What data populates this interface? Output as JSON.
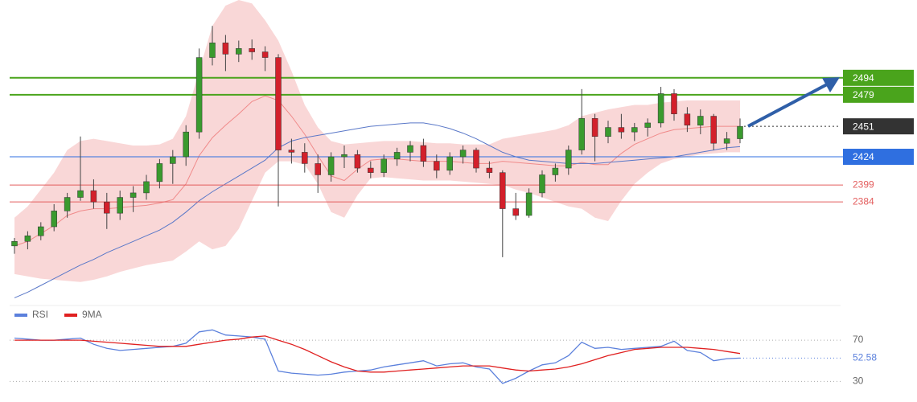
{
  "chart_data": [
    {
      "type": "candlestick",
      "ylim": [
        2300,
        2563
      ],
      "up_color": "#3a9a2e",
      "down_color": "#d3202b",
      "open": [
        2345,
        2349,
        2354,
        2362,
        2376,
        2388,
        2394,
        2384,
        2374,
        2388,
        2392,
        2402,
        2418,
        2424,
        2446,
        2512,
        2525,
        2515,
        2520,
        2517,
        2512,
        2430,
        2428,
        2418,
        2408,
        2424,
        2426,
        2414,
        2410,
        2422,
        2428,
        2434,
        2420,
        2412,
        2424,
        2430,
        2414,
        2410,
        2378,
        2372,
        2392,
        2408,
        2414,
        2430,
        2458,
        2442,
        2450,
        2446,
        2450,
        2454,
        2480,
        2462,
        2452,
        2460,
        2436,
        2440
      ],
      "high": [
        2352,
        2358,
        2366,
        2382,
        2392,
        2442,
        2404,
        2392,
        2394,
        2398,
        2408,
        2422,
        2430,
        2452,
        2520,
        2540,
        2532,
        2527,
        2528,
        2522,
        2515,
        2440,
        2436,
        2426,
        2428,
        2434,
        2430,
        2420,
        2426,
        2432,
        2438,
        2440,
        2426,
        2428,
        2434,
        2432,
        2420,
        2412,
        2392,
        2396,
        2412,
        2418,
        2434,
        2484,
        2462,
        2456,
        2462,
        2454,
        2458,
        2486,
        2484,
        2468,
        2466,
        2462,
        2446,
        2458
      ],
      "low": [
        2338,
        2342,
        2350,
        2358,
        2370,
        2385,
        2378,
        2360,
        2368,
        2375,
        2386,
        2396,
        2400,
        2416,
        2440,
        2505,
        2500,
        2508,
        2510,
        2500,
        2380,
        2418,
        2410,
        2392,
        2402,
        2414,
        2410,
        2405,
        2406,
        2416,
        2420,
        2415,
        2405,
        2408,
        2418,
        2410,
        2405,
        2335,
        2368,
        2370,
        2388,
        2402,
        2408,
        2426,
        2420,
        2436,
        2440,
        2438,
        2442,
        2450,
        2456,
        2446,
        2444,
        2430,
        2430,
        2436
      ],
      "close": [
        2349,
        2354,
        2362,
        2376,
        2388,
        2394,
        2384,
        2374,
        2388,
        2392,
        2402,
        2418,
        2424,
        2446,
        2512,
        2525,
        2515,
        2520,
        2517,
        2512,
        2430,
        2428,
        2418,
        2408,
        2424,
        2426,
        2414,
        2410,
        2422,
        2428,
        2434,
        2420,
        2412,
        2424,
        2430,
        2414,
        2410,
        2378,
        2372,
        2392,
        2408,
        2414,
        2430,
        2458,
        2442,
        2450,
        2446,
        2450,
        2454,
        2480,
        2462,
        2452,
        2460,
        2436,
        2440,
        2451
      ],
      "upper_band": [
        2370,
        2380,
        2395,
        2410,
        2430,
        2438,
        2440,
        2438,
        2436,
        2434,
        2434,
        2435,
        2440,
        2460,
        2500,
        2540,
        2558,
        2563,
        2560,
        2545,
        2527,
        2500,
        2470,
        2450,
        2438,
        2435,
        2436,
        2437,
        2438,
        2438,
        2438,
        2437,
        2436,
        2436,
        2435,
        2435,
        2435,
        2440,
        2442,
        2444,
        2446,
        2448,
        2452,
        2460,
        2463,
        2466,
        2468,
        2470,
        2470,
        2472,
        2473,
        2474,
        2474,
        2474,
        2474,
        2474
      ],
      "lower_band": [
        2320,
        2318,
        2316,
        2315,
        2314,
        2313,
        2315,
        2318,
        2322,
        2325,
        2328,
        2330,
        2332,
        2340,
        2349,
        2342,
        2345,
        2360,
        2385,
        2410,
        2420,
        2420,
        2417,
        2400,
        2375,
        2370,
        2390,
        2405,
        2406,
        2405,
        2404,
        2403,
        2403,
        2403,
        2402,
        2401,
        2400,
        2399,
        2395,
        2392,
        2388,
        2384,
        2380,
        2378,
        2370,
        2367,
        2385,
        2400,
        2410,
        2418,
        2422,
        2424,
        2426,
        2427,
        2428,
        2428
      ],
      "middle_band": [
        2345,
        2349,
        2356,
        2363,
        2372,
        2376,
        2378,
        2378,
        2379,
        2380,
        2381,
        2383,
        2386,
        2400,
        2425,
        2441,
        2452,
        2462,
        2473,
        2478,
        2474,
        2460,
        2444,
        2425,
        2407,
        2403,
        2413,
        2421,
        2422,
        2422,
        2421,
        2420,
        2420,
        2420,
        2419,
        2418,
        2418,
        2420,
        2419,
        2418,
        2417,
        2416,
        2416,
        2419,
        2417,
        2417,
        2427,
        2435,
        2440,
        2445,
        2448,
        2449,
        2450,
        2451,
        2451,
        2451
      ],
      "moving_average": [
        2299,
        2304,
        2310,
        2316,
        2322,
        2328,
        2333,
        2339,
        2344,
        2349,
        2354,
        2359,
        2366,
        2375,
        2385,
        2393,
        2400,
        2407,
        2414,
        2421,
        2432,
        2438,
        2441,
        2443,
        2445,
        2447,
        2449,
        2451,
        2452,
        2453,
        2454,
        2454,
        2452,
        2449,
        2445,
        2440,
        2434,
        2428,
        2424,
        2421,
        2420,
        2419,
        2418,
        2418,
        2418,
        2419,
        2420,
        2421,
        2422,
        2423,
        2424,
        2426,
        2428,
        2430,
        2432,
        2433
      ],
      "band_color": "#f7c9c9",
      "middle_color": "#f08a8a",
      "ma_color": "#5a78c8",
      "levels": [
        {
          "value": 2494,
          "color": "#4aa41c",
          "style": "box"
        },
        {
          "value": 2479,
          "color": "#4aa41c",
          "style": "box"
        },
        {
          "value": 2451,
          "color": "#333333",
          "style": "dotted"
        },
        {
          "value": 2424,
          "color": "#2f6fe0",
          "style": "box"
        },
        {
          "value": 2399,
          "color": "#e35d5d",
          "style": "text"
        },
        {
          "value": 2384,
          "color": "#e35d5d",
          "style": "text"
        }
      ]
    },
    {
      "type": "line",
      "ylim": [
        17,
        88
      ],
      "yticks": [
        70,
        30
      ],
      "series": [
        {
          "name": "RSI",
          "color": "#5b80dc",
          "values": [
            72,
            71,
            70,
            70,
            71,
            72,
            66,
            62,
            60,
            61,
            62,
            63,
            64,
            67,
            78,
            80,
            75,
            74,
            73,
            71,
            40,
            38,
            37,
            36,
            37,
            39,
            40,
            41,
            44,
            46,
            48,
            50,
            45,
            47,
            48,
            44,
            42,
            28,
            33,
            40,
            46,
            48,
            55,
            68,
            62,
            63,
            61,
            62,
            63,
            64,
            69,
            60,
            58,
            50,
            52,
            52.58
          ]
        },
        {
          "name": "9MA",
          "color": "#e02020",
          "values": [
            70,
            70,
            70,
            70,
            70,
            70,
            69,
            68,
            67,
            66,
            65,
            64,
            64,
            64,
            66,
            68,
            70,
            71,
            73,
            74,
            70,
            66,
            61,
            55,
            49,
            44,
            40,
            39,
            39,
            40,
            41,
            42,
            43,
            44,
            45,
            45,
            45,
            43,
            41,
            40,
            41,
            42,
            44,
            47,
            51,
            55,
            58,
            61,
            62,
            63,
            63,
            63,
            62,
            61,
            59,
            57
          ]
        }
      ]
    }
  ]
}
